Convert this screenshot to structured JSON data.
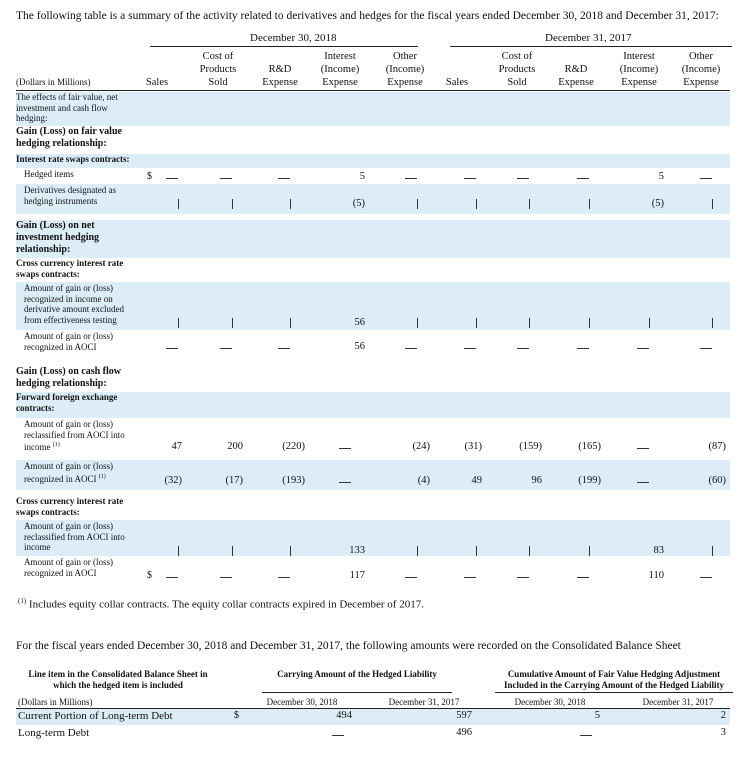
{
  "intro": "The following table is a summary of the activity related to derivatives and hedges for the fiscal years ended December 30, 2018 and December 31, 2017:",
  "periods": [
    "December 30, 2018",
    "December 31, 2017"
  ],
  "units_label": "(Dollars in Millions)",
  "columns": [
    "Sales",
    "Cost of Products Sold",
    "R&D Expense",
    "Interest (Income) Expense",
    "Other (Income) Expense",
    "Sales",
    "Cost of Products Sold",
    "R&D Expense",
    "Interest (Income) Expense",
    "Other (Income) Expense"
  ],
  "col_lines": [
    [
      "Sales"
    ],
    [
      "Cost of",
      "Products",
      "Sold"
    ],
    [
      "R&D",
      "Expense"
    ],
    [
      "Interest",
      "(Income)",
      "Expense"
    ],
    [
      "Other",
      "(Income)",
      "Expense"
    ],
    [
      "Sales"
    ],
    [
      "Cost of",
      "Products",
      "Sold"
    ],
    [
      "R&D",
      "Expense"
    ],
    [
      "Interest",
      "(Income)",
      "Expense"
    ],
    [
      "Other",
      "(Income)",
      "Expense"
    ]
  ],
  "rows": [
    {
      "label": "The effects of fair value, net investment and cash flow hedging:"
    },
    {
      "label": "Gain (Loss) on fair value hedging relationship:"
    },
    {
      "label": "Interest rate swaps contracts:"
    },
    {
      "label": "Hedged items",
      "dollar": "$",
      "values": [
        "—",
        "—",
        "—",
        "5",
        "—",
        "—",
        "—",
        "—",
        "5",
        "—"
      ]
    },
    {
      "label": "Derivatives designated as hedging instruments",
      "values": [
        "—",
        "—",
        "—",
        "(5)",
        "—",
        "—",
        "—",
        "—",
        "(5)",
        "—"
      ]
    },
    {
      "label": "Gain (Loss) on net investment hedging relationship:"
    },
    {
      "label": "Cross currency interest rate swaps contracts:"
    },
    {
      "label": "Amount of gain or (loss) recognized in income on derivative amount excluded from effectiveness testing",
      "values": [
        "—",
        "—",
        "—",
        "56",
        "—",
        "—",
        "—",
        "—",
        "—",
        "—"
      ]
    },
    {
      "label": "Amount of gain or (loss) recognized in AOCI",
      "values": [
        "—",
        "—",
        "—",
        "56",
        "—",
        "—",
        "—",
        "—",
        "—",
        "—"
      ]
    },
    {
      "label": "Gain (Loss) on cash flow hedging relationship:"
    },
    {
      "label": "Forward foreign exchange contracts:"
    },
    {
      "label": "Amount of gain or (loss) reclassified from AOCI into income",
      "note": "(1)",
      "values": [
        "47",
        "200",
        "(220)",
        "—",
        "(24)",
        "(31)",
        "(159)",
        "(165)",
        "—",
        "(87)"
      ]
    },
    {
      "label": "Amount of gain or (loss) recognized in AOCI",
      "note": "(1)",
      "values": [
        "(32)",
        "(17)",
        "(193)",
        "—",
        "(4)",
        "49",
        "96",
        "(199)",
        "—",
        "(60)"
      ]
    },
    {
      "label": "Cross currency interest rate swaps contracts:"
    },
    {
      "label": "Amount of gain or (loss) reclassified from AOCI into income",
      "values": [
        "—",
        "—",
        "—",
        "133",
        "—",
        "—",
        "—",
        "—",
        "83",
        "—"
      ]
    },
    {
      "label": "Amount of gain or (loss) recognized in AOCI",
      "dollar": "$",
      "values": [
        "—",
        "—",
        "—",
        "117",
        "—",
        "—",
        "—",
        "—",
        "110",
        "—"
      ]
    }
  ],
  "footnote_mark": "(1)",
  "footnote": "Includes equity collar contracts. The equity collar contracts expired in December of 2017.",
  "balance": {
    "intro": "For the fiscal years ended December 30, 2018 and December 31, 2017, the following amounts were recorded on the Consolidated Balance Sheet",
    "line_item_header": "Line item in the Consolidated Balance Sheet in which the hedged item is included",
    "carrying_header": "Carrying Amount of the Hedged Liability",
    "cumulative_header": "Cumulative Amount of Fair Value Hedging Adjustment Included in the Carrying Amount of the Hedged Liability",
    "units_label": "(Dollars in Millions)",
    "dates": [
      "December 30, 2018",
      "December 31, 2017",
      "December 30, 2018",
      "December 31, 2017"
    ],
    "rows": [
      {
        "label": "Current Portion of Long-term Debt",
        "dollar": "$",
        "values": [
          "494",
          "597",
          "5",
          "2"
        ]
      },
      {
        "label": "Long-term Debt",
        "values": [
          "—",
          "496",
          "—",
          "3"
        ]
      }
    ]
  }
}
